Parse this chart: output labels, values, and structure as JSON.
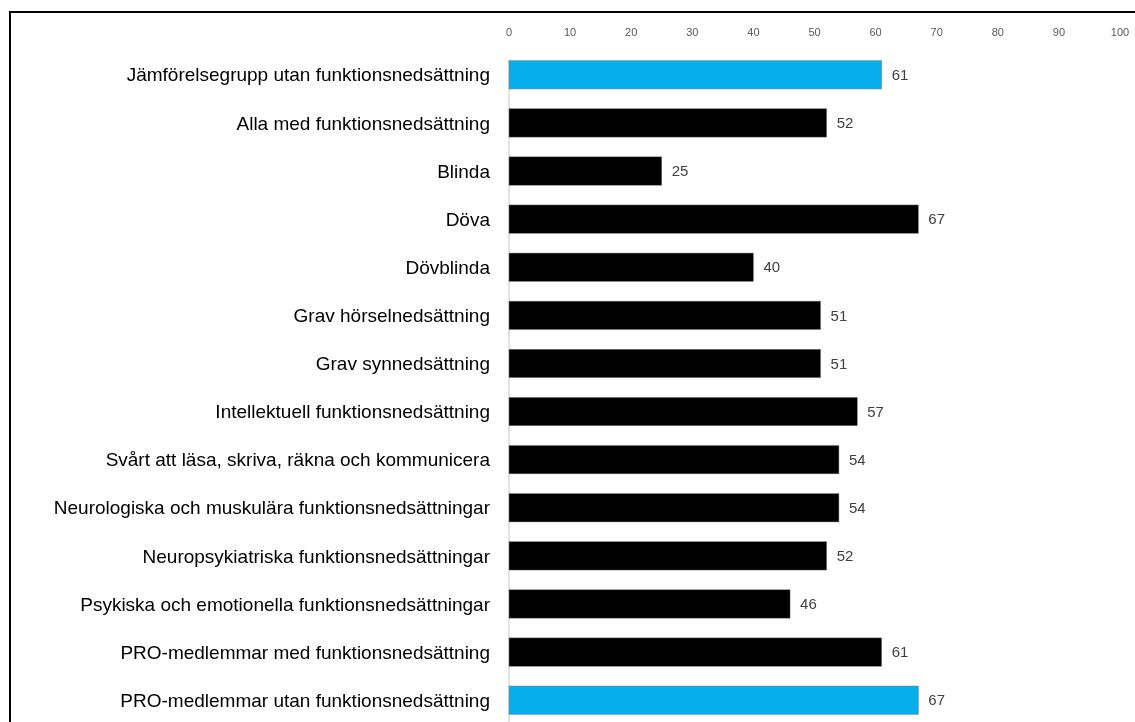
{
  "chart_data": {
    "type": "bar",
    "orientation": "horizontal",
    "categories": [
      "Jämförelsegrupp utan funktionsnedsättning",
      "Alla med funktionsnedsättning",
      "Blinda",
      "Döva",
      "Dövblinda",
      "Grav hörselnedsättning",
      "Grav synnedsättning",
      "Intellektuell funktionsnedsättning",
      "Svårt att läsa, skriva, räkna och kommunicera",
      "Neurologiska och muskulära funktionsnedsättningar",
      "Neuropsykiatriska funktionsnedsättningar",
      "Psykiska och emotionella funktionsnedsättningar",
      "PRO-medlemmar med funktionsnedsättning",
      "PRO-medlemmar utan funktionsnedsättning"
    ],
    "values": [
      61,
      52,
      25,
      67,
      40,
      51,
      51,
      57,
      54,
      54,
      52,
      46,
      61,
      67
    ],
    "colors": [
      "#07aeec",
      "#000000",
      "#000000",
      "#000000",
      "#000000",
      "#000000",
      "#000000",
      "#000000",
      "#000000",
      "#000000",
      "#000000",
      "#000000",
      "#000000",
      "#07aeec"
    ],
    "xlim": [
      0,
      100
    ],
    "xticks": [
      0,
      10,
      20,
      30,
      40,
      50,
      60,
      70,
      80,
      90,
      100
    ],
    "data_labels": true
  }
}
